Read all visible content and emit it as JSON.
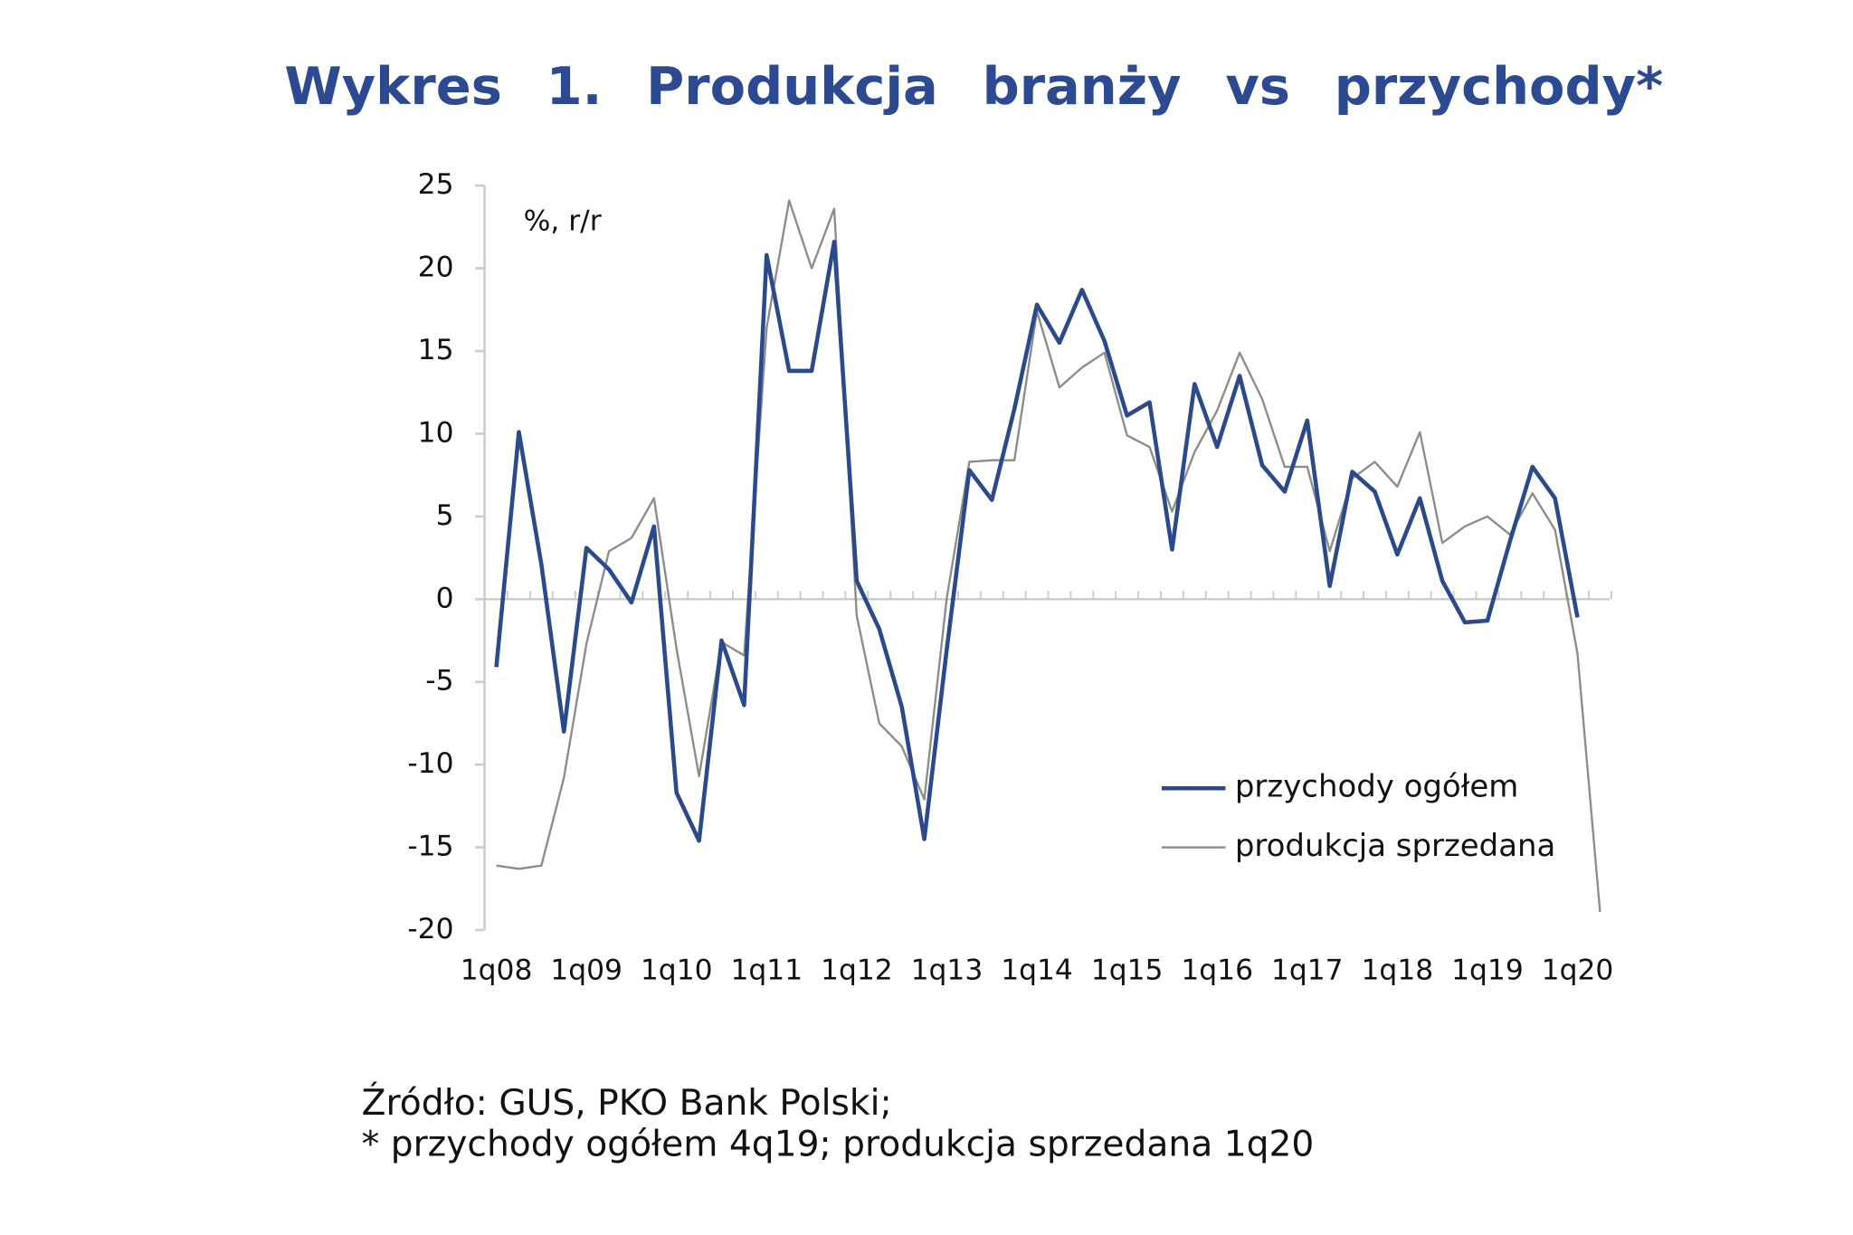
{
  "chart_data": {
    "type": "line",
    "title": "Wykres 1. Produkcja branży vs przychody*",
    "y_axis_label": "%, r/r",
    "source": "Źródło: GUS, PKO Bank Polski;",
    "footnote": "* przychody ogółem 4q19; produkcja sprzedana 1q20",
    "categories": [
      "1q08",
      null,
      null,
      null,
      "1q09",
      null,
      null,
      null,
      "1q10",
      null,
      null,
      null,
      "1q11",
      null,
      null,
      null,
      "1q12",
      null,
      null,
      null,
      "1q13",
      null,
      null,
      null,
      "1q14",
      null,
      null,
      null,
      "1q15",
      null,
      null,
      null,
      "1q16",
      null,
      null,
      null,
      "1q17",
      null,
      null,
      null,
      "1q18",
      null,
      null,
      null,
      "1q19",
      null,
      null,
      null,
      "1q20",
      null
    ],
    "series": [
      {
        "name": "przychody ogółem",
        "color": "#2a4a8c",
        "width": 3.5,
        "values": [
          -4.1,
          10.1,
          2.1,
          -8.0,
          3.1,
          1.8,
          -0.2,
          4.4,
          -11.7,
          -14.6,
          -2.5,
          -6.4,
          20.8,
          13.8,
          13.8,
          21.6,
          1.1,
          -1.8,
          -6.5,
          -14.5,
          -3.0,
          7.8,
          6.0,
          11.5,
          17.8,
          15.5,
          18.7,
          15.6,
          11.1,
          11.9,
          3.0,
          13.0,
          9.2,
          13.5,
          8.1,
          6.5,
          10.8,
          0.8,
          7.7,
          6.5,
          2.7,
          6.1,
          1.1,
          -1.4,
          -1.3,
          3.5,
          8.0,
          6.1,
          -1.1,
          null
        ]
      },
      {
        "name": "produkcja sprzedana",
        "color": "#8c8c8c",
        "width": 1.8,
        "values": [
          -16.1,
          -16.3,
          -16.1,
          -10.8,
          -2.7,
          2.9,
          3.7,
          6.1,
          -3.0,
          -10.7,
          -2.6,
          -3.4,
          16.4,
          24.1,
          20.0,
          23.6,
          -1.0,
          -7.5,
          -8.9,
          -12.1,
          0.1,
          8.3,
          8.4,
          8.4,
          17.4,
          12.8,
          14.0,
          14.9,
          9.9,
          9.2,
          5.3,
          8.9,
          11.4,
          14.9,
          12.1,
          8.0,
          8.0,
          2.9,
          7.3,
          8.3,
          6.8,
          10.1,
          3.4,
          4.4,
          5.0,
          3.9,
          6.4,
          4.2,
          -3.3,
          -18.9
        ]
      }
    ],
    "ylim": [
      -20,
      25
    ],
    "yticks": [
      -20,
      -15,
      -10,
      -5,
      0,
      5,
      10,
      15,
      20,
      25
    ],
    "legend": "lower right"
  }
}
